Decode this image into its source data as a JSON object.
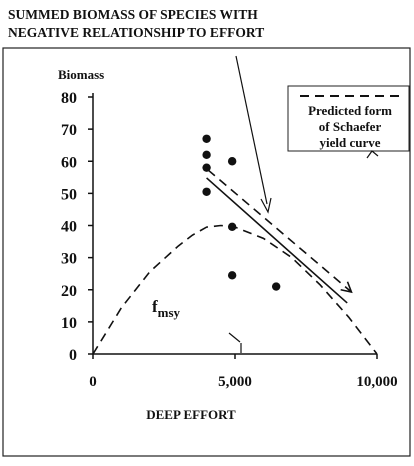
{
  "chart_data": {
    "type": "scatter",
    "title": [
      "SUMMED BIOMASS OF SPECIES WITH",
      "NEGATIVE RELATIONSHIP TO EFFORT"
    ],
    "ylabel": "Biomass",
    "xlabel": "DEEP EFFORT",
    "xlim": [
      0,
      10000
    ],
    "ylim": [
      0,
      80
    ],
    "xticks": [
      0,
      {
        "value": 5000,
        "label": "5,000"
      },
      {
        "value": 10000,
        "label": "10,000"
      }
    ],
    "yticks": [
      0,
      10,
      20,
      30,
      40,
      50,
      60,
      70,
      80
    ],
    "color": "#111111",
    "x": [
      4000,
      4000,
      4000,
      4000,
      4900,
      4900,
      4900,
      6450
    ],
    "values": [
      67,
      62,
      58,
      50.5,
      39.6,
      60,
      24.5,
      21
    ],
    "lines": [
      {
        "style": "dashed",
        "x": [
          0,
          1000,
          2000,
          3000,
          3500,
          4000,
          4500,
          5000,
          6000,
          7000,
          8000,
          9000,
          10000
        ],
        "values": [
          0,
          14.4,
          25.6,
          33.6,
          37,
          39.5,
          40,
          39.5,
          36,
          30,
          21.5,
          11.5,
          0
        ]
      },
      {
        "style": "solid",
        "x": [
          4000,
          8950
        ],
        "values": [
          54.8,
          15.9
        ]
      },
      {
        "style": "dashed",
        "arrow": true,
        "x": [
          4050,
          9100
        ],
        "values": [
          57.3,
          19.3
        ]
      }
    ],
    "legend": [
      "Predicted form",
      "of Schaefer",
      "yield curve"
    ],
    "fmsy": {
      "text": "f",
      "subscript": "msy"
    }
  }
}
